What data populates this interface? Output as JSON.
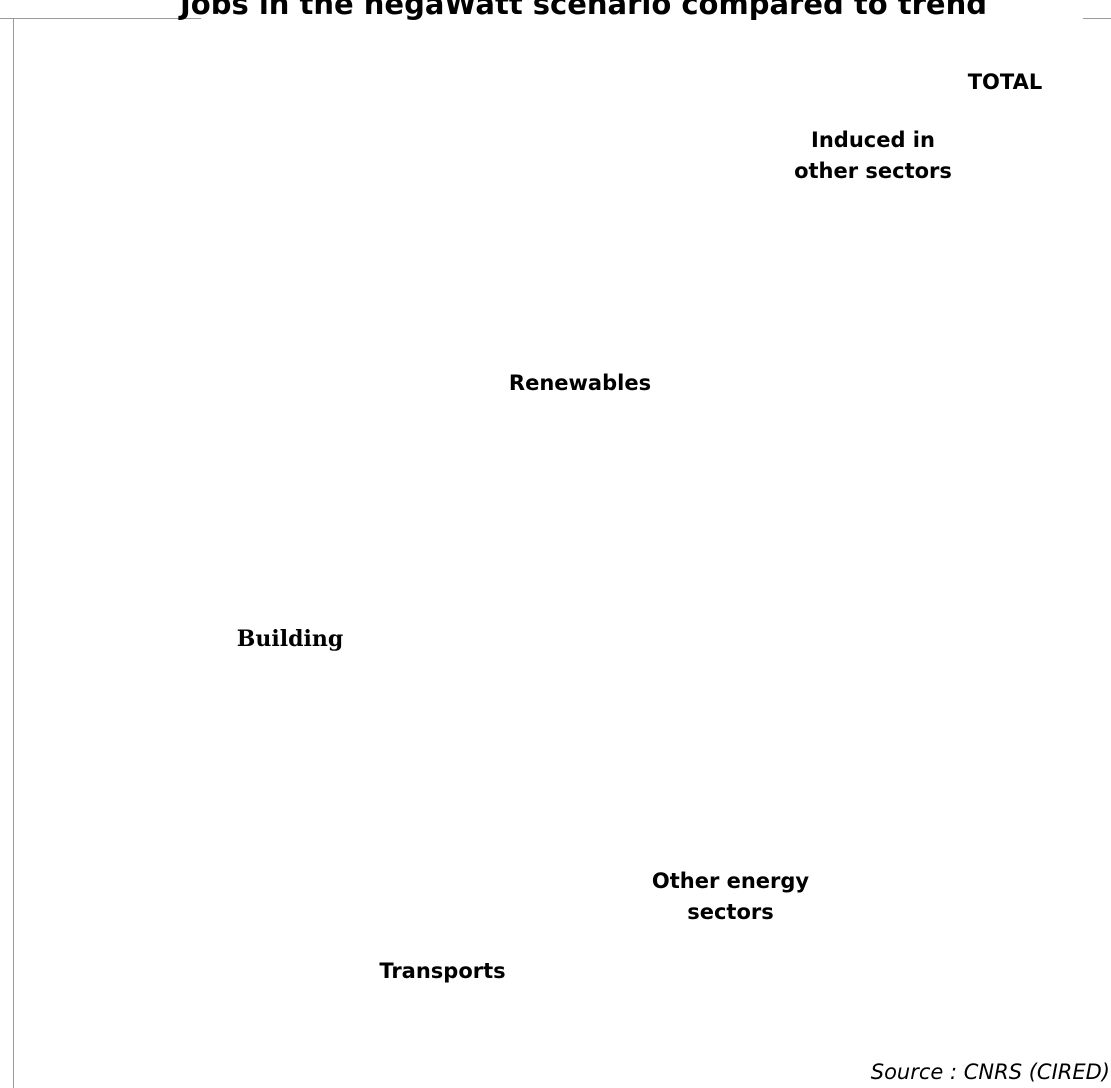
{
  "chart_data": {
    "type": "bar",
    "title": "Jobs in the negaWatt scenario compared to trend",
    "labels": [
      {
        "id": "total",
        "text": "TOTAL"
      },
      {
        "id": "induced",
        "text": "Induced in\nother sectors"
      },
      {
        "id": "renewables",
        "text": "Renewables"
      },
      {
        "id": "building",
        "text": "Building"
      },
      {
        "id": "other-energy",
        "text": "Other energy\nsectors"
      },
      {
        "id": "transports",
        "text": "Transports"
      }
    ],
    "source": "Source : CNRS (CIRED)",
    "colors": {
      "background": "#ffffff",
      "frame": "#9a9a9a",
      "text": "#000000"
    }
  }
}
